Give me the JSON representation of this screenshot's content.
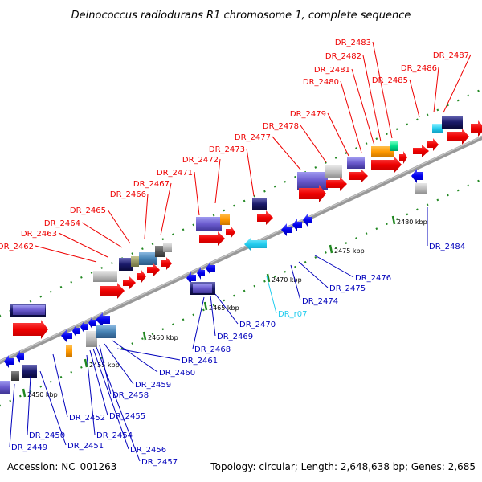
{
  "title": "Deinococcus radiodurans R1 chromosome 1, complete sequence",
  "accession": "Accession: NC_001263",
  "topology": "Topology: circular; Length: 2,648,638 bp; Genes: 2,685",
  "colors": {
    "forward_label": "#ee0000",
    "reverse_label": "#0000bb",
    "rna_label": "#22ccee",
    "backbone": "#999999",
    "tick": "#228822"
  },
  "scale_labels": [
    "2450 kbp",
    "2455 kbp",
    "2460 kbp",
    "2465 kbp",
    "2470 kbp",
    "2475 kbp",
    "2480 kbp"
  ],
  "forward_labels": [
    "DR_2462",
    "DR_2463",
    "DR_2464",
    "DR_2465",
    "DR_2466",
    "DR_2467",
    "DR_2471",
    "DR_2472",
    "DR_2473",
    "DR_2477",
    "DR_2478",
    "DR_2479",
    "DR_2480",
    "DR_2481",
    "DR_2482",
    "DR_2483",
    "DR_2485",
    "DR_2486",
    "DR_2487"
  ],
  "reverse_labels": [
    "DR_2449",
    "DR_2450",
    "DR_2451",
    "DR_2452",
    "DR_2454",
    "DR_2455",
    "DR_2456",
    "DR_2457",
    "DR_2458",
    "DR_2459",
    "DR_2460",
    "DR_2461",
    "DR_2468",
    "DR_2469",
    "DR_2470",
    "DR_r07",
    "DR_2474",
    "DR_2475",
    "DR_2476",
    "DR_2484"
  ]
}
